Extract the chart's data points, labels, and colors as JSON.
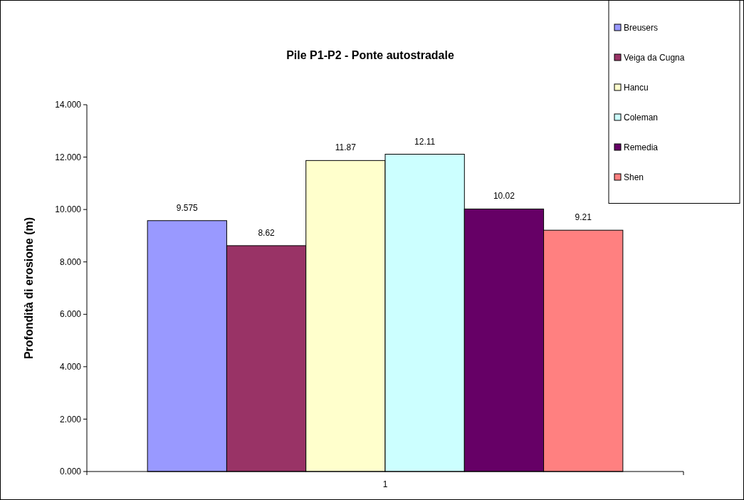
{
  "chart_data": {
    "type": "bar",
    "title": "Pile P1-P2 - Ponte autostradale",
    "ylabel": "Profondità di erosione (m)",
    "categories": [
      "1"
    ],
    "series": [
      {
        "name": "Breusers",
        "color": "#9999ff",
        "values": [
          9.575
        ]
      },
      {
        "name": "Veiga da Cugna",
        "color": "#993366",
        "values": [
          8.62
        ]
      },
      {
        "name": "Hancu",
        "color": "#ffffcc",
        "values": [
          11.87
        ]
      },
      {
        "name": "Coleman",
        "color": "#ccffff",
        "values": [
          12.11
        ]
      },
      {
        "name": "Remedia",
        "color": "#660066",
        "values": [
          10.02
        ]
      },
      {
        "name": "Shen",
        "color": "#ff8080",
        "values": [
          9.21
        ]
      }
    ],
    "ylim": [
      0,
      14
    ],
    "yticks": [
      {
        "value": 0,
        "label": "0.000"
      },
      {
        "value": 2,
        "label": "2.000"
      },
      {
        "value": 4,
        "label": "4.000"
      },
      {
        "value": 6,
        "label": "6.000"
      },
      {
        "value": 8,
        "label": "8.000"
      },
      {
        "value": 10,
        "label": "10.000"
      },
      {
        "value": 12,
        "label": "12.000"
      },
      {
        "value": 14,
        "label": "14.000"
      }
    ],
    "data_labels": true,
    "grid": false,
    "legend": "top right"
  }
}
